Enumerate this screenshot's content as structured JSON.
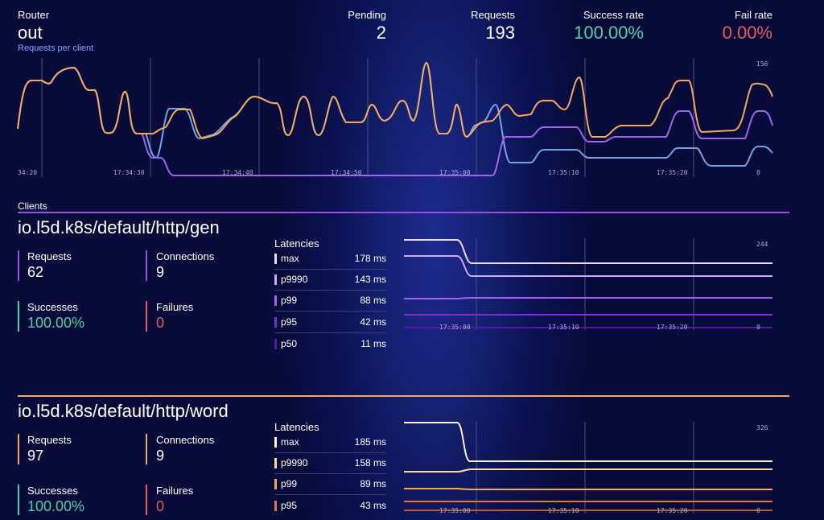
{
  "router": {
    "label": "Router",
    "name": "out",
    "link": "Requests per client"
  },
  "summary": {
    "pending": {
      "label": "Pending",
      "value": "2"
    },
    "requests": {
      "label": "Requests",
      "value": "193"
    },
    "success": {
      "label": "Success rate",
      "value": "100.00%"
    },
    "fail": {
      "label": "Fail rate",
      "value": "0.00%"
    }
  },
  "main_chart": {
    "max_label": "156",
    "min_label": "0",
    "ticks": [
      "34:20",
      "17:34:30",
      "17:34:40",
      "17:34:50",
      "17:35:00",
      "17:35:10",
      "17:35:20"
    ]
  },
  "clients_label": "Clients",
  "colors": {
    "gen": "#9b4fe0",
    "word": "#f5a85a",
    "success": "#4fd1a5",
    "fail": "#e8595a"
  },
  "clients": [
    {
      "name": "io.l5d.k8s/default/http/gen",
      "requests_label": "Requests",
      "requests": "62",
      "connections_label": "Connections",
      "connections": "9",
      "successes_label": "Successes",
      "successes": "100.00%",
      "failures_label": "Failures",
      "failures": "0",
      "latencies_label": "Latencies",
      "latencies": [
        {
          "name": "max",
          "value": "178 ms",
          "color": "#e9dcff"
        },
        {
          "name": "p9990",
          "value": "143 ms",
          "color": "#cfa8ff"
        },
        {
          "name": "p99",
          "value": "88 ms",
          "color": "#a460ee"
        },
        {
          "name": "p95",
          "value": "42 ms",
          "color": "#7a2fd0"
        },
        {
          "name": "p50",
          "value": "11 ms",
          "color": "#5418a8"
        }
      ],
      "chart": {
        "max_label": "244",
        "min_label": "0",
        "ticks": [
          "17:35:00",
          "17:35:10",
          "17:35:20"
        ]
      }
    },
    {
      "name": "io.l5d.k8s/default/http/word",
      "requests_label": "Requests",
      "requests": "97",
      "connections_label": "Connections",
      "connections": "9",
      "successes_label": "Successes",
      "successes": "100.00%",
      "failures_label": "Failures",
      "failures": "0",
      "latencies_label": "Latencies",
      "latencies": [
        {
          "name": "max",
          "value": "185 ms",
          "color": "#fff2c8"
        },
        {
          "name": "p9990",
          "value": "158 ms",
          "color": "#ffd9a0"
        },
        {
          "name": "p99",
          "value": "89 ms",
          "color": "#f5a85a"
        },
        {
          "name": "p95",
          "value": "43 ms",
          "color": "#e8743a"
        }
      ],
      "chart": {
        "max_label": "326",
        "min_label": "0",
        "ticks": [
          "17:35:00",
          "17:35:10",
          "17:35:20"
        ]
      }
    }
  ]
}
